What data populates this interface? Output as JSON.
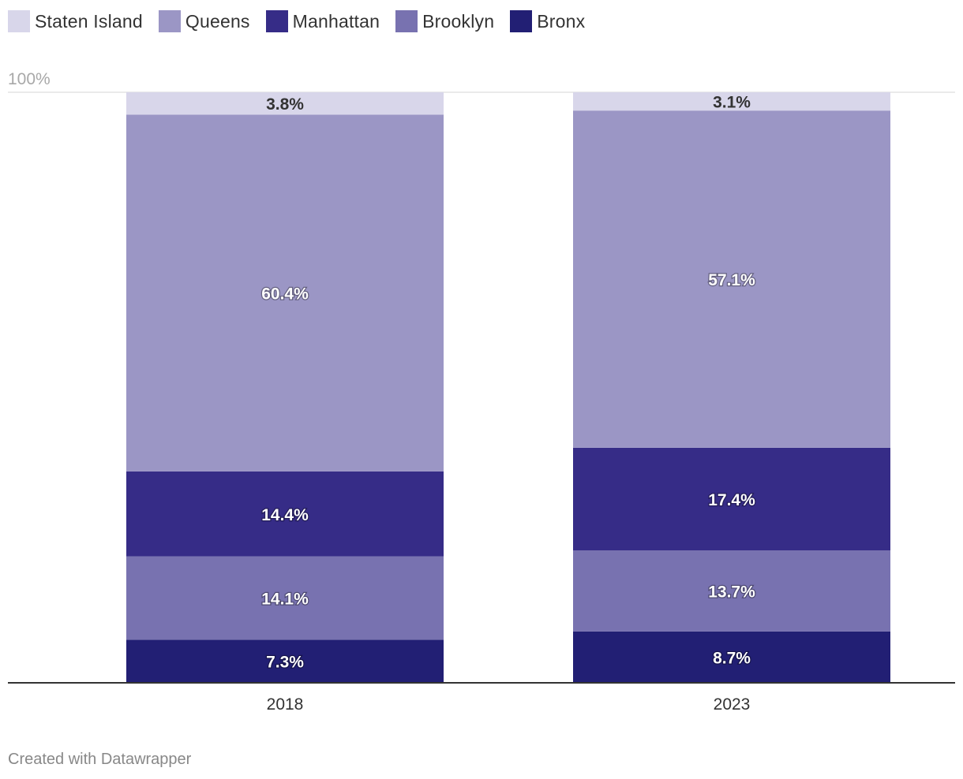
{
  "chart_data": {
    "type": "bar",
    "stacked": true,
    "categories": [
      "2018",
      "2023"
    ],
    "series": [
      {
        "name": "Bronx",
        "color": "#221f74",
        "values": [
          7.3,
          8.7
        ]
      },
      {
        "name": "Brooklyn",
        "color": "#7872b0",
        "values": [
          14.1,
          13.7
        ]
      },
      {
        "name": "Manhattan",
        "color": "#362c87",
        "values": [
          14.4,
          17.4
        ]
      },
      {
        "name": "Queens",
        "color": "#9b96c5",
        "values": [
          60.4,
          57.1
        ]
      },
      {
        "name": "Staten Island",
        "color": "#d8d6ea",
        "values": [
          3.8,
          3.1
        ]
      }
    ],
    "data_labels": [
      [
        "7.3%",
        "8.7%"
      ],
      [
        "14.1%",
        "13.7%"
      ],
      [
        "14.4%",
        "17.4%"
      ],
      [
        "60.4%",
        "57.1%"
      ],
      [
        "3.8%",
        "3.1%"
      ]
    ],
    "legend_order": [
      "Staten Island",
      "Queens",
      "Manhattan",
      "Brooklyn",
      "Bronx"
    ],
    "ylim": [
      0,
      100
    ],
    "gridline_label": "100%",
    "legend_position": "top-left"
  },
  "footer": {
    "credit": "Created with Datawrapper"
  }
}
